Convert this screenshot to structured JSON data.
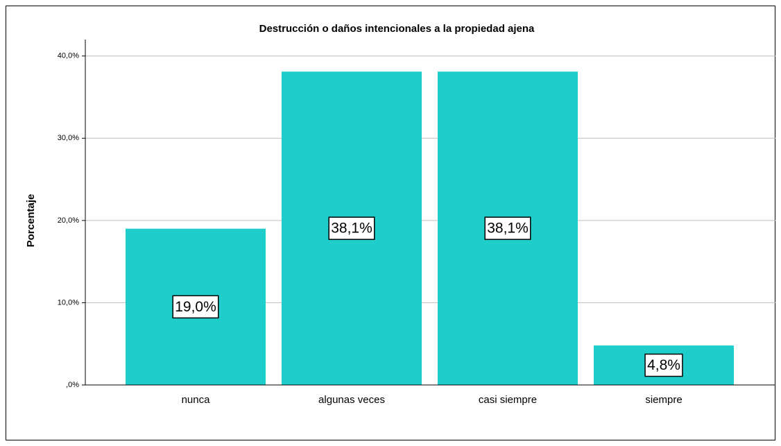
{
  "chart_data": {
    "type": "bar",
    "title": "Destrucción o daños intencionales a la propiedad ajena",
    "y_label": "Porcentaje",
    "categories": [
      "nunca",
      "algunas veces",
      "casi siempre",
      "siempre"
    ],
    "values": [
      19.0,
      38.1,
      38.1,
      4.8
    ],
    "value_labels": [
      "19,0%",
      "38,1%",
      "38,1%",
      "4,8%"
    ],
    "color": "#1fcecb",
    "ylim": [
      0,
      42
    ],
    "yticks": [
      {
        "value": 0,
        "label": ",0%"
      },
      {
        "value": 10,
        "label": "10,0%"
      },
      {
        "value": 20,
        "label": "20,0%"
      },
      {
        "value": 30,
        "label": "30,0%"
      },
      {
        "value": 40,
        "label": "40,0%"
      }
    ],
    "grid": true
  }
}
